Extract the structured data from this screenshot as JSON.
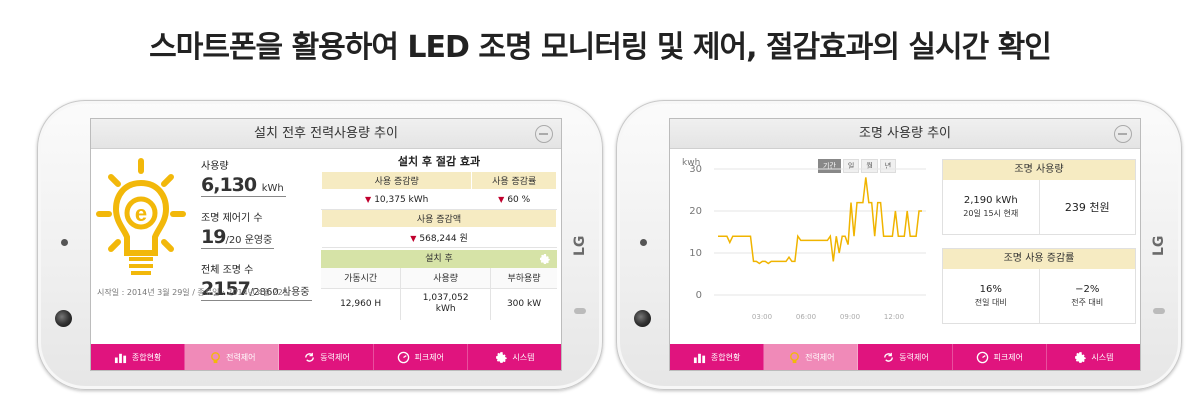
{
  "headline": "스마트폰을 활용하여 LED 조명 모니터링 및 제어, 절감효과의 실시간 확인",
  "phones": {
    "brand": "LG"
  },
  "nav": {
    "items": [
      {
        "label": "종합현황",
        "icon": "bar-chart-icon"
      },
      {
        "label": "전력제어",
        "icon": "bulb-icon"
      },
      {
        "label": "동력제어",
        "icon": "cycle-icon"
      },
      {
        "label": "피크제어",
        "icon": "gauge-icon"
      },
      {
        "label": "시스템",
        "icon": "gear-icon"
      }
    ],
    "left_active_index": 1,
    "right_active_index": 1
  },
  "left_screen": {
    "title": "설치 전후 전력사용량 추이",
    "usage_label": "사용량",
    "usage_value": "6,130",
    "usage_unit": "kWh",
    "control_label": "조명 제어기 수",
    "control_value": "19",
    "control_suffix": "/20 운영중",
    "total_label": "전체 조명 수",
    "total_value": "2157",
    "total_suffix": "/2860 사용중",
    "dates": "시작일 : 2014년 3월 29일 / 종료일 : 2014년 4월 22일",
    "effect_title": "설치 후 절감 효과",
    "col_reduction": "사용 증감량",
    "col_rate": "사용 증감률",
    "reduction_value": "10,375 kWh",
    "rate_value": "60 %",
    "amount_header": "사용 증감액",
    "amount_value": "568,244 원",
    "after_label": "설치 후",
    "after_cols": [
      "가동시간",
      "사용량",
      "부하용량"
    ],
    "after_vals": [
      "12,960 H",
      "1,037,052\nkWh",
      "300 kW"
    ]
  },
  "right_screen": {
    "title": "조명 사용량 추이",
    "unit_label": "kwh",
    "period_tabs": [
      "기간",
      "일",
      "월",
      "년"
    ],
    "active_period": 0,
    "x_ticks": [
      "03:00",
      "06:00",
      "09:00",
      "12:00"
    ],
    "usage_card": {
      "header": "조명 사용량",
      "value1": "2,190 kWh",
      "sub1": "20일 15시 현재",
      "value2": "239 천원"
    },
    "rate_card": {
      "header": "조명 사용 증감률",
      "value1": "16%",
      "sub1": "전일 대비",
      "value2": "−2%",
      "sub2": "전주 대비"
    }
  },
  "chart_data": {
    "type": "line",
    "title": "",
    "xlabel": "",
    "ylabel": "kwh",
    "ylim": [
      0,
      30
    ],
    "yticks": [
      0,
      10,
      20,
      30
    ],
    "color": "#f0b400",
    "series": [
      {
        "values": [
          14,
          14,
          14,
          14,
          12.5,
          14,
          14,
          14,
          14,
          14,
          14,
          14,
          8,
          8,
          7.5,
          8,
          8,
          7.5,
          8,
          8,
          8,
          8,
          8,
          8,
          9,
          8,
          8,
          14,
          13,
          13,
          13,
          13,
          13,
          13,
          13,
          13,
          13,
          13,
          14,
          8,
          14,
          10,
          14,
          14,
          12,
          22,
          14,
          22,
          22,
          22,
          28,
          22,
          22,
          14,
          22,
          22,
          14,
          14,
          14,
          14,
          20,
          14,
          14,
          14,
          20,
          14,
          14,
          14,
          20,
          20
        ]
      }
    ]
  }
}
